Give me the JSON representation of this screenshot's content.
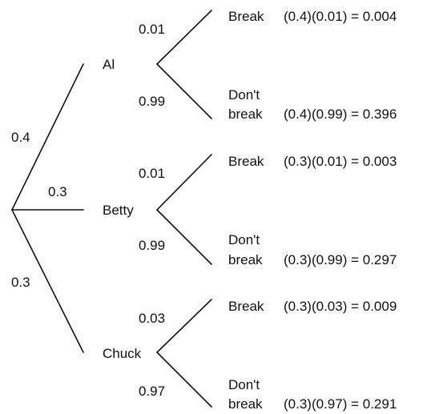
{
  "tree": {
    "first_level_probabilities": [
      "0.4",
      "0.3",
      "0.3"
    ],
    "people": [
      {
        "name": "Al",
        "branches": [
          {
            "probability": "0.01",
            "outcome": [
              "Break"
            ],
            "product": "(0.4)(0.01) = 0.004"
          },
          {
            "probability": "0.99",
            "outcome": [
              "Don't",
              "break"
            ],
            "product": "(0.4)(0.99) = 0.396"
          }
        ]
      },
      {
        "name": "Betty",
        "branches": [
          {
            "probability": "0.01",
            "outcome": [
              "Break"
            ],
            "product": "(0.3)(0.01) = 0.003"
          },
          {
            "probability": "0.99",
            "outcome": [
              "Don't",
              "break"
            ],
            "product": "(0.3)(0.99) = 0.297"
          }
        ]
      },
      {
        "name": "Chuck",
        "branches": [
          {
            "probability": "0.03",
            "outcome": [
              "Break"
            ],
            "product": "(0.3)(0.03) = 0.009"
          },
          {
            "probability": "0.97",
            "outcome": [
              "Don't",
              "break"
            ],
            "product": "(0.3)(0.97) = 0.291"
          }
        ]
      }
    ]
  }
}
